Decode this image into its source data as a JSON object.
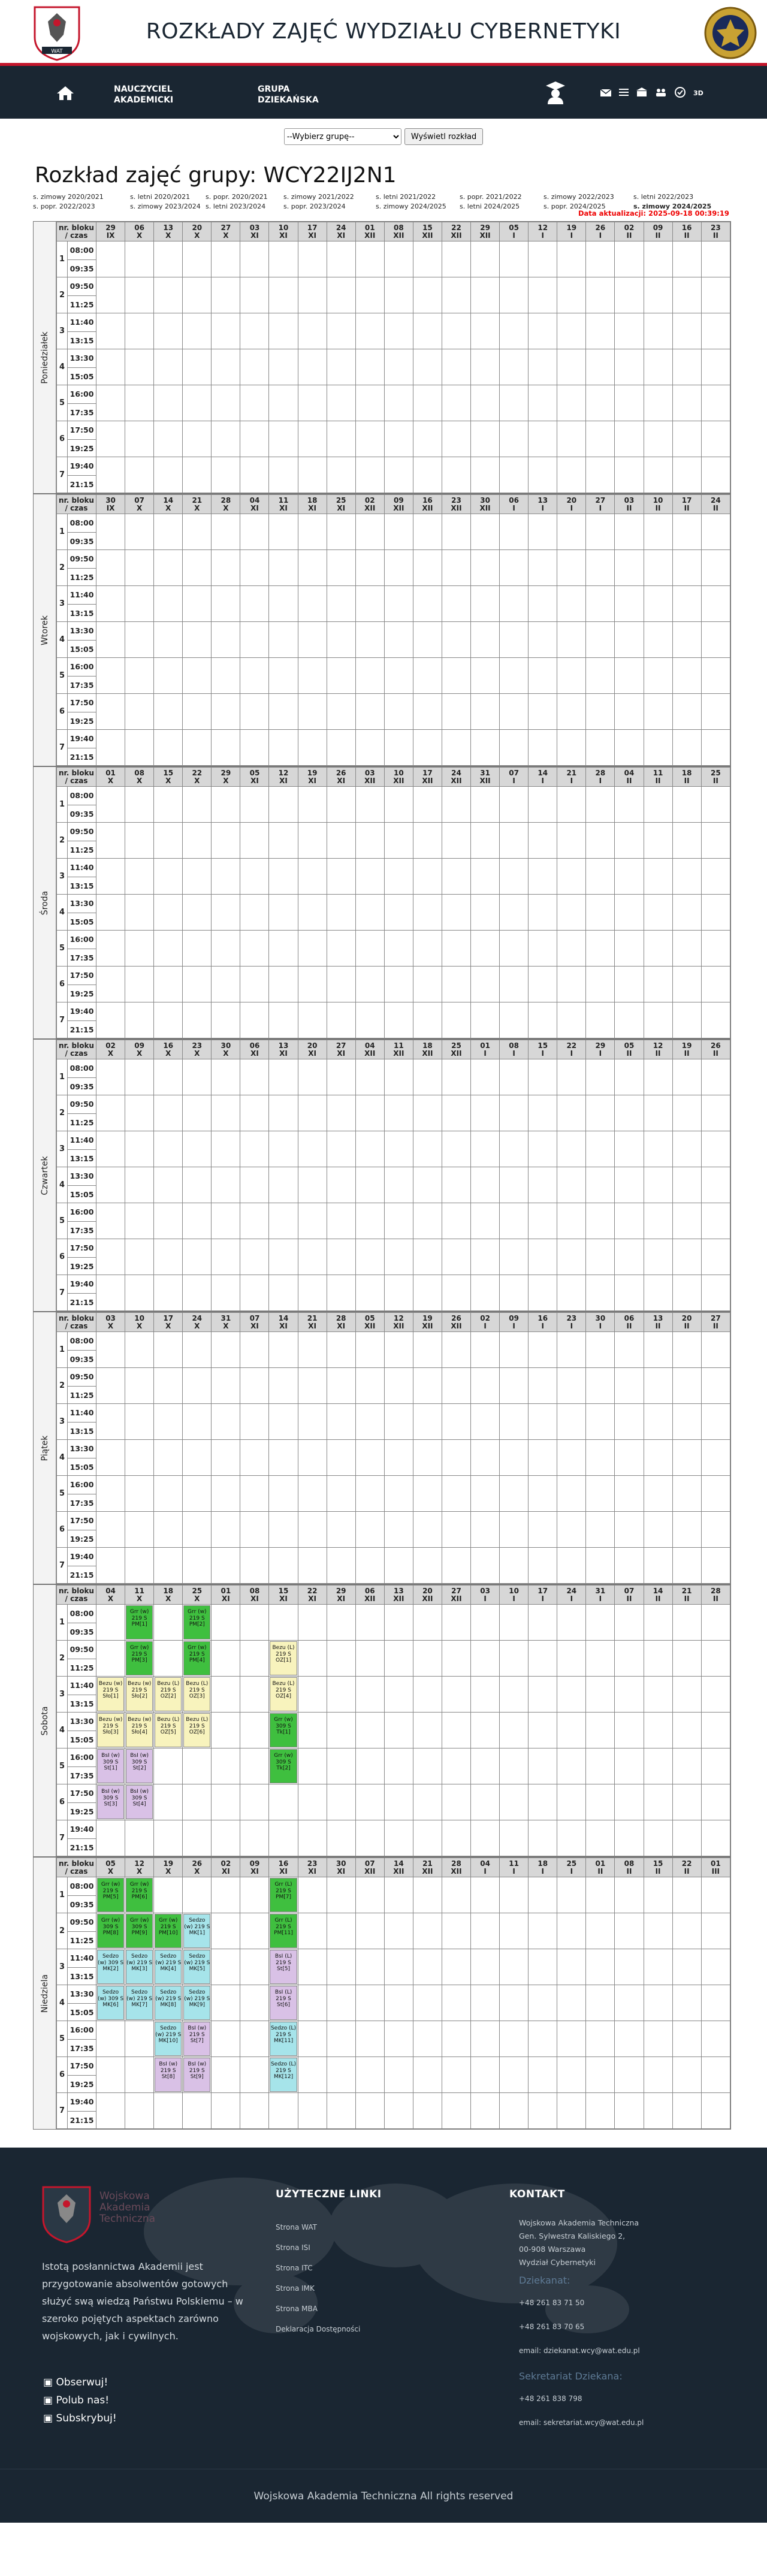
{
  "header": {
    "title": "ROZKŁADY ZAJĘĆ WYDZIAŁU CYBERNETYKI",
    "crest_text": "WAT"
  },
  "nav": {
    "item1": "NAUCZYCIEL AKADEMICKI",
    "item2": "GRUPA DZIEKAŃSKA",
    "icons": [
      "home-icon",
      "student-icon",
      "mail-icon",
      "list-icon",
      "building-icon",
      "group-icon",
      "pass-icon",
      "3d-icon"
    ]
  },
  "controls": {
    "select_value": "--Wybierz grupę--",
    "button": "Wyświetl rozkład"
  },
  "page": {
    "title": "Rozkład zajęć grupy: WCY22IJ2N1",
    "update": "Data aktualizacji: 2025-09-18 00:39:19"
  },
  "semesters": [
    "s. zimowy 2020/2021",
    "s. letni 2020/2021",
    "s. popr. 2020/2021",
    "s. zimowy 2021/2022",
    "s. letni 2021/2022",
    "s. popr. 2021/2022",
    "s. zimowy 2022/2023",
    "s. letni 2022/2023",
    "s. popr. 2022/2023",
    "s. zimowy 2023/2024",
    "s. letni 2023/2024",
    "s. popr. 2023/2024",
    "s. zimowy 2024/2025",
    "s. letni 2024/2025",
    "s. popr. 2024/2025",
    "s. zimowy 2024/2025"
  ],
  "table_header": "nr. bloku / czas",
  "blocks": [
    [
      "08:00",
      "09:35"
    ],
    [
      "09:50",
      "11:25"
    ],
    [
      "11:40",
      "13:15"
    ],
    [
      "13:30",
      "15:05"
    ],
    [
      "16:00",
      "17:35"
    ],
    [
      "17:50",
      "19:25"
    ],
    [
      "19:40",
      "21:15"
    ]
  ],
  "days": [
    {
      "name": "Poniedziałek",
      "dates": [
        [
          "29",
          "IX"
        ],
        [
          "06",
          "X"
        ],
        [
          "13",
          "X"
        ],
        [
          "20",
          "X"
        ],
        [
          "27",
          "X"
        ],
        [
          "03",
          "XI"
        ],
        [
          "10",
          "XI"
        ],
        [
          "17",
          "XI"
        ],
        [
          "24",
          "XI"
        ],
        [
          "01",
          "XII"
        ],
        [
          "08",
          "XII"
        ],
        [
          "15",
          "XII"
        ],
        [
          "22",
          "XII"
        ],
        [
          "29",
          "XII"
        ],
        [
          "05",
          "I"
        ],
        [
          "12",
          "I"
        ],
        [
          "19",
          "I"
        ],
        [
          "26",
          "I"
        ],
        [
          "02",
          "II"
        ],
        [
          "09",
          "II"
        ],
        [
          "16",
          "II"
        ],
        [
          "23",
          "II"
        ]
      ]
    },
    {
      "name": "Wtorek",
      "dates": [
        [
          "30",
          "IX"
        ],
        [
          "07",
          "X"
        ],
        [
          "14",
          "X"
        ],
        [
          "21",
          "X"
        ],
        [
          "28",
          "X"
        ],
        [
          "04",
          "XI"
        ],
        [
          "11",
          "XI"
        ],
        [
          "18",
          "XI"
        ],
        [
          "25",
          "XI"
        ],
        [
          "02",
          "XII"
        ],
        [
          "09",
          "XII"
        ],
        [
          "16",
          "XII"
        ],
        [
          "23",
          "XII"
        ],
        [
          "30",
          "XII"
        ],
        [
          "06",
          "I"
        ],
        [
          "13",
          "I"
        ],
        [
          "20",
          "I"
        ],
        [
          "27",
          "I"
        ],
        [
          "03",
          "II"
        ],
        [
          "10",
          "II"
        ],
        [
          "17",
          "II"
        ],
        [
          "24",
          "II"
        ]
      ]
    },
    {
      "name": "Środa",
      "dates": [
        [
          "01",
          "X"
        ],
        [
          "08",
          "X"
        ],
        [
          "15",
          "X"
        ],
        [
          "22",
          "X"
        ],
        [
          "29",
          "X"
        ],
        [
          "05",
          "XI"
        ],
        [
          "12",
          "XI"
        ],
        [
          "19",
          "XI"
        ],
        [
          "26",
          "XI"
        ],
        [
          "03",
          "XII"
        ],
        [
          "10",
          "XII"
        ],
        [
          "17",
          "XII"
        ],
        [
          "24",
          "XII"
        ],
        [
          "31",
          "XII"
        ],
        [
          "07",
          "I"
        ],
        [
          "14",
          "I"
        ],
        [
          "21",
          "I"
        ],
        [
          "28",
          "I"
        ],
        [
          "04",
          "II"
        ],
        [
          "11",
          "II"
        ],
        [
          "18",
          "II"
        ],
        [
          "25",
          "II"
        ]
      ]
    },
    {
      "name": "Czwartek",
      "dates": [
        [
          "02",
          "X"
        ],
        [
          "09",
          "X"
        ],
        [
          "16",
          "X"
        ],
        [
          "23",
          "X"
        ],
        [
          "30",
          "X"
        ],
        [
          "06",
          "XI"
        ],
        [
          "13",
          "XI"
        ],
        [
          "20",
          "XI"
        ],
        [
          "27",
          "XI"
        ],
        [
          "04",
          "XII"
        ],
        [
          "11",
          "XII"
        ],
        [
          "18",
          "XII"
        ],
        [
          "25",
          "XII"
        ],
        [
          "01",
          "I"
        ],
        [
          "08",
          "I"
        ],
        [
          "15",
          "I"
        ],
        [
          "22",
          "I"
        ],
        [
          "29",
          "I"
        ],
        [
          "05",
          "II"
        ],
        [
          "12",
          "II"
        ],
        [
          "19",
          "II"
        ],
        [
          "26",
          "II"
        ]
      ]
    },
    {
      "name": "Piątek",
      "dates": [
        [
          "03",
          "X"
        ],
        [
          "10",
          "X"
        ],
        [
          "17",
          "X"
        ],
        [
          "24",
          "X"
        ],
        [
          "31",
          "X"
        ],
        [
          "07",
          "XI"
        ],
        [
          "14",
          "XI"
        ],
        [
          "21",
          "XI"
        ],
        [
          "28",
          "XI"
        ],
        [
          "05",
          "XII"
        ],
        [
          "12",
          "XII"
        ],
        [
          "19",
          "XII"
        ],
        [
          "26",
          "XII"
        ],
        [
          "02",
          "I"
        ],
        [
          "09",
          "I"
        ],
        [
          "16",
          "I"
        ],
        [
          "23",
          "I"
        ],
        [
          "30",
          "I"
        ],
        [
          "06",
          "II"
        ],
        [
          "13",
          "II"
        ],
        [
          "20",
          "II"
        ],
        [
          "27",
          "II"
        ]
      ]
    },
    {
      "name": "Sobota",
      "dates": [
        [
          "04",
          "X"
        ],
        [
          "11",
          "X"
        ],
        [
          "18",
          "X"
        ],
        [
          "25",
          "X"
        ],
        [
          "01",
          "XI"
        ],
        [
          "08",
          "XI"
        ],
        [
          "15",
          "XI"
        ],
        [
          "22",
          "XI"
        ],
        [
          "29",
          "XI"
        ],
        [
          "06",
          "XII"
        ],
        [
          "13",
          "XII"
        ],
        [
          "20",
          "XII"
        ],
        [
          "27",
          "XII"
        ],
        [
          "03",
          "I"
        ],
        [
          "10",
          "I"
        ],
        [
          "17",
          "I"
        ],
        [
          "24",
          "I"
        ],
        [
          "31",
          "I"
        ],
        [
          "07",
          "II"
        ],
        [
          "14",
          "II"
        ],
        [
          "21",
          "II"
        ],
        [
          "28",
          "II"
        ]
      ],
      "events": [
        {
          "b": 0,
          "c": 1,
          "t": "Grr (w) 219 S PM[1]",
          "col": "#3fbf3f"
        },
        {
          "b": 0,
          "c": 3,
          "t": "Grr (w) 219 S PM[2]",
          "col": "#3fbf3f"
        },
        {
          "b": 1,
          "c": 1,
          "t": "Grr (w) 219 S PM[3]",
          "col": "#3fbf3f"
        },
        {
          "b": 1,
          "c": 3,
          "t": "Grr (w) 219 S PM[4]",
          "col": "#3fbf3f"
        },
        {
          "b": 1,
          "c": 6,
          "t": "Bezu (L) 219 S OZ[1]",
          "col": "#f8f3bd"
        },
        {
          "b": 2,
          "c": 0,
          "t": "Bezu (w) 219 S Sło[1]",
          "col": "#f8f3bd"
        },
        {
          "b": 2,
          "c": 1,
          "t": "Bezu (w) 219 S Sło[2]",
          "col": "#f8f3bd"
        },
        {
          "b": 2,
          "c": 2,
          "t": "Bezu (L) 219 S OZ[2]",
          "col": "#f8f3bd"
        },
        {
          "b": 2,
          "c": 3,
          "t": "Bezu (L) 219 S OZ[3]",
          "col": "#f8f3bd"
        },
        {
          "b": 2,
          "c": 6,
          "t": "Bezu (L) 219 S OZ[4]",
          "col": "#f8f3bd"
        },
        {
          "b": 3,
          "c": 0,
          "t": "Bezu (w) 219 S Sło[3]",
          "col": "#f8f3bd"
        },
        {
          "b": 3,
          "c": 1,
          "t": "Bezu (w) 219 S Sło[4]",
          "col": "#f8f3bd"
        },
        {
          "b": 3,
          "c": 2,
          "t": "Bezu (L) 219 S OZ[5]",
          "col": "#f8f3bd"
        },
        {
          "b": 3,
          "c": 3,
          "t": "Bezu (L) 219 S OZ[6]",
          "col": "#f8f3bd"
        },
        {
          "b": 3,
          "c": 6,
          "t": "Grr (w) 309 S Tk[1]",
          "col": "#3fbf3f"
        },
        {
          "b": 4,
          "c": 0,
          "t": "BsI (w) 309 S St[1]",
          "col": "#d9c1e6"
        },
        {
          "b": 4,
          "c": 1,
          "t": "BsI (w) 309 S St[2]",
          "col": "#d9c1e6"
        },
        {
          "b": 4,
          "c": 6,
          "t": "Grr (w) 309 S Tk[2]",
          "col": "#3fbf3f"
        },
        {
          "b": 5,
          "c": 0,
          "t": "BsI (w) 309 S St[3]",
          "col": "#d9c1e6"
        },
        {
          "b": 5,
          "c": 1,
          "t": "BsI (w) 309 S St[4]",
          "col": "#d9c1e6"
        }
      ]
    },
    {
      "name": "Niedziela",
      "dates": [
        [
          "05",
          "X"
        ],
        [
          "12",
          "X"
        ],
        [
          "19",
          "X"
        ],
        [
          "26",
          "X"
        ],
        [
          "02",
          "XI"
        ],
        [
          "09",
          "XI"
        ],
        [
          "16",
          "XI"
        ],
        [
          "23",
          "XI"
        ],
        [
          "30",
          "XI"
        ],
        [
          "07",
          "XII"
        ],
        [
          "14",
          "XII"
        ],
        [
          "21",
          "XII"
        ],
        [
          "28",
          "XII"
        ],
        [
          "04",
          "I"
        ],
        [
          "11",
          "I"
        ],
        [
          "18",
          "I"
        ],
        [
          "25",
          "I"
        ],
        [
          "01",
          "II"
        ],
        [
          "08",
          "II"
        ],
        [
          "15",
          "II"
        ],
        [
          "22",
          "II"
        ],
        [
          "01",
          "III"
        ]
      ],
      "events": [
        {
          "b": 0,
          "c": 0,
          "t": "Grr (w) 219 S PM[5]",
          "col": "#3fbf3f"
        },
        {
          "b": 0,
          "c": 1,
          "t": "Grr (w) 219 S PM[6]",
          "col": "#3fbf3f"
        },
        {
          "b": 0,
          "c": 6,
          "t": "Grr (L) 219 S PM[7]",
          "col": "#3fbf3f"
        },
        {
          "b": 1,
          "c": 0,
          "t": "Grr (w) 309 S PM[8]",
          "col": "#3fbf3f"
        },
        {
          "b": 1,
          "c": 1,
          "t": "Grr (w) 309 S PM[9]",
          "col": "#3fbf3f"
        },
        {
          "b": 1,
          "c": 2,
          "t": "Grr (w) 219 S PM[10]",
          "col": "#3fbf3f"
        },
        {
          "b": 1,
          "c": 3,
          "t": "Sedzo (w) 219 S MK[1]",
          "col": "#a6e4ea"
        },
        {
          "b": 1,
          "c": 6,
          "t": "Grr (L) 219 S PM[11]",
          "col": "#3fbf3f"
        },
        {
          "b": 2,
          "c": 0,
          "t": "Sedzo (w) 309 S MK[2]",
          "col": "#a6e4ea"
        },
        {
          "b": 2,
          "c": 1,
          "t": "Sedzo (w) 219 S MK[3]",
          "col": "#a6e4ea"
        },
        {
          "b": 2,
          "c": 2,
          "t": "Sedzo (w) 219 S MK[4]",
          "col": "#a6e4ea"
        },
        {
          "b": 2,
          "c": 3,
          "t": "Sedzo (w) 219 S MK[5]",
          "col": "#a6e4ea"
        },
        {
          "b": 2,
          "c": 6,
          "t": "BsI (L) 219 S St[5]",
          "col": "#d9c1e6"
        },
        {
          "b": 3,
          "c": 0,
          "t": "Sedzo (w) 309 S MK[6]",
          "col": "#a6e4ea"
        },
        {
          "b": 3,
          "c": 1,
          "t": "Sedzo (w) 219 S MK[7]",
          "col": "#a6e4ea"
        },
        {
          "b": 3,
          "c": 2,
          "t": "Sedzo (w) 219 S MK[8]",
          "col": "#a6e4ea"
        },
        {
          "b": 3,
          "c": 3,
          "t": "Sedzo (w) 219 S MK[9]",
          "col": "#a6e4ea"
        },
        {
          "b": 3,
          "c": 6,
          "t": "BsI (L) 219 S St[6]",
          "col": "#d9c1e6"
        },
        {
          "b": 4,
          "c": 2,
          "t": "Sedzo (w) 219 S MK[10]",
          "col": "#a6e4ea"
        },
        {
          "b": 4,
          "c": 3,
          "t": "BsI (w) 219 S St[7]",
          "col": "#d9c1e6"
        },
        {
          "b": 4,
          "c": 6,
          "t": "Sedzo (L) 219 S MK[11]",
          "col": "#a6e4ea"
        },
        {
          "b": 5,
          "c": 2,
          "t": "BsI (w) 219 S St[8]",
          "col": "#d9c1e6"
        },
        {
          "b": 5,
          "c": 3,
          "t": "BsI (w) 219 S St[9]",
          "col": "#d9c1e6"
        },
        {
          "b": 5,
          "c": 6,
          "t": "Sedzo (L) 219 S MK[12]",
          "col": "#a6e4ea"
        }
      ]
    }
  ],
  "footer": {
    "logo_text": "Wojskowa Akademia Techniczna",
    "about": "Istotą posłannictwa Akademii jest przygotowanie absolwentów gotowych służyć swą wiedzą Państwu Polskiemu – w szeroko pojętych aspektach zarówno wojskowych, jak i cywilnych.",
    "social": [
      "Obserwuj!",
      "Polub nas!",
      "Subskrybuj!"
    ],
    "links_title": "UŻYTECZNE LINKI",
    "links": [
      "Strona WAT",
      "Strona ISI",
      "Strona ITC",
      "Strona IMK",
      "Strona MBA",
      "Deklaracja Dostępności"
    ],
    "contact_title": "KONTAKT",
    "address": [
      "Wojskowa Akademia Techniczna",
      "Gen. Sylwestra Kaliskiego 2,",
      "00-908 Warszawa",
      "Wydział Cybernetyki"
    ],
    "dean_title": "Dziekanat:",
    "dean_phone1": "+48 261 83 71 50",
    "dean_phone2": "+48 261 83 70 65",
    "dean_email": "email: dziekanat.wcy@wat.edu.pl",
    "secr_title": "Sekretariat Dziekana:",
    "secr_phone": "+48 261 838 798",
    "secr_email": "email: sekretariat.wcy@wat.edu.pl",
    "copyright": "Wojskowa Akademia Techniczna All rights reserved"
  }
}
